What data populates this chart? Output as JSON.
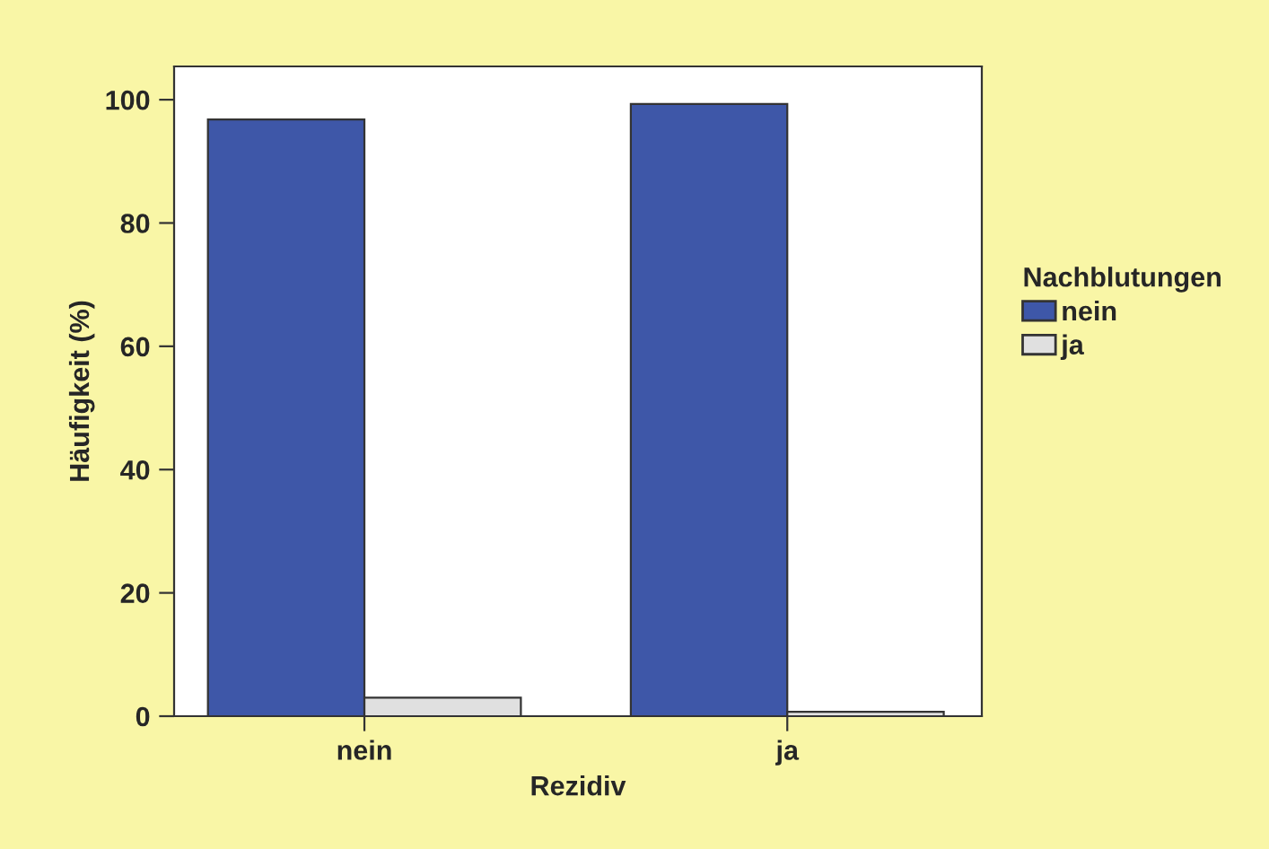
{
  "chart_data": {
    "type": "bar",
    "xlabel": "Rezidiv",
    "ylabel": "Häufigkeit (%)",
    "legend_title": "Nachblutungen",
    "categories": [
      "nein",
      "ja"
    ],
    "series": [
      {
        "name": "nein",
        "color": "#3e57a8",
        "values": [
          96.8,
          99.3
        ]
      },
      {
        "name": "ja",
        "color": "#e0e0e0",
        "values": [
          3.0,
          0.7
        ]
      }
    ],
    "ylim": [
      0,
      105.4
    ],
    "yticks": [
      0,
      20,
      40,
      60,
      80,
      100
    ],
    "grid": false,
    "legend": "right"
  }
}
